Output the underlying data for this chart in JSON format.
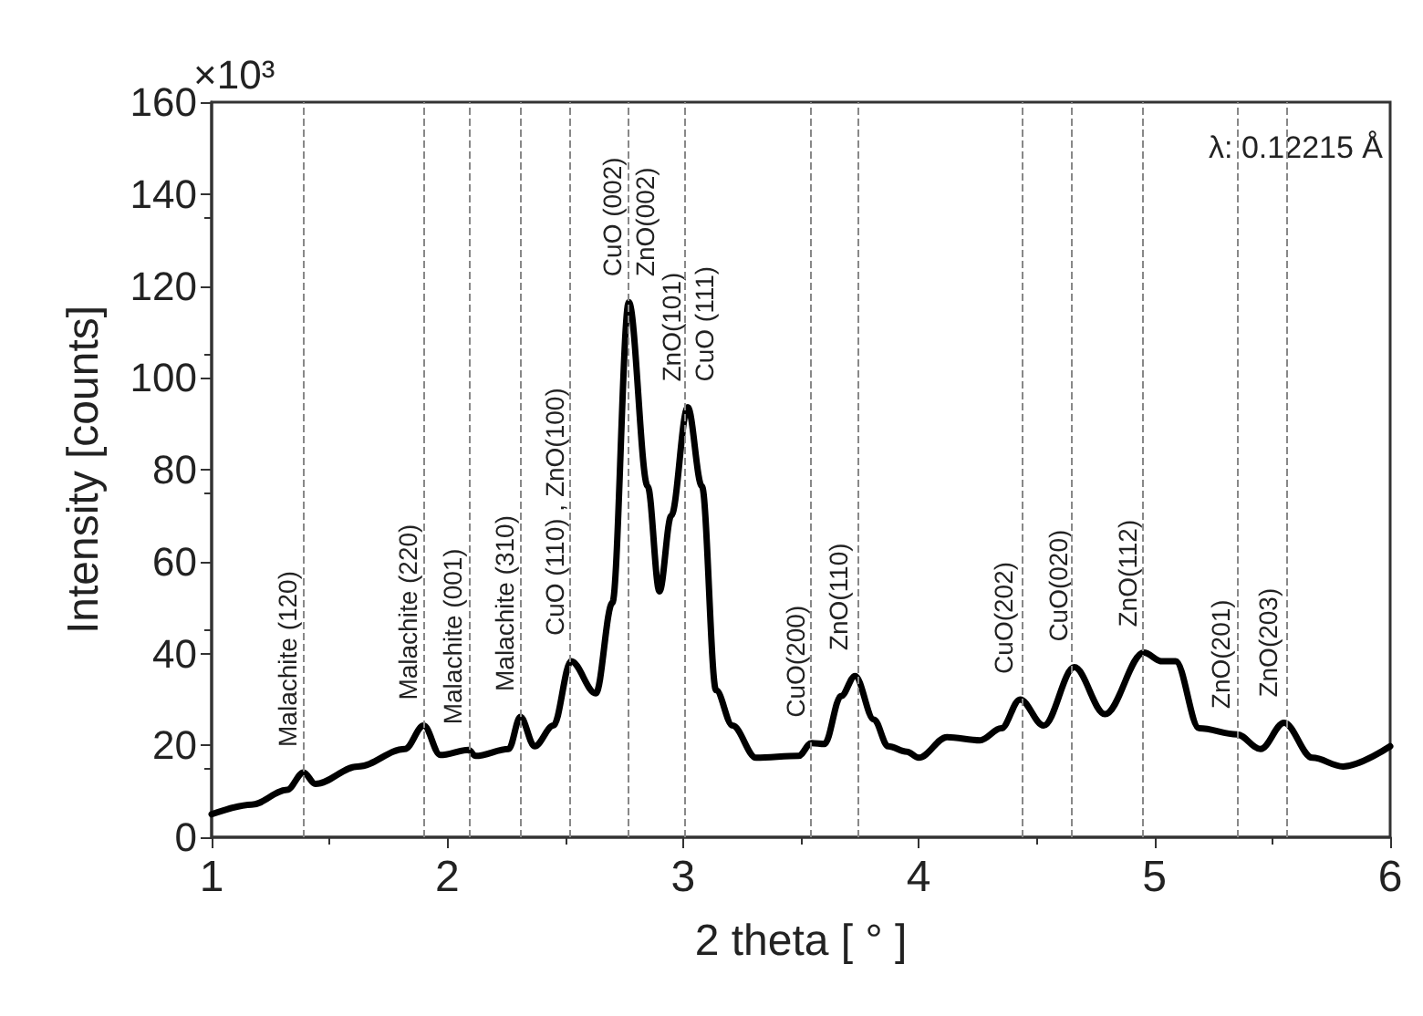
{
  "chart_data": {
    "type": "line",
    "xlabel": "2 theta [ ° ]",
    "ylabel": "Intensity [counts]",
    "xlim": [
      1,
      6
    ],
    "xticks": [
      1,
      2,
      3,
      4,
      5,
      6
    ],
    "ylim": [
      0,
      160
    ],
    "yticks": [
      0,
      20,
      40,
      60,
      80,
      100,
      120,
      140,
      160
    ],
    "grid": false,
    "marker": "none",
    "line_style": "solid",
    "series": [
      {
        "color": "#000000",
        "x": [
          1.0,
          1.17,
          1.32,
          1.39,
          1.44,
          1.62,
          1.82,
          1.9,
          1.97,
          2.09,
          2.12,
          2.26,
          2.31,
          2.37,
          2.45,
          2.525,
          2.63,
          2.7,
          2.77,
          2.85,
          2.9,
          2.95,
          3.02,
          3.08,
          3.14,
          3.21,
          3.31,
          3.49,
          3.545,
          3.6,
          3.67,
          3.73,
          3.81,
          3.87,
          3.95,
          4.0,
          4.12,
          4.26,
          4.35,
          4.43,
          4.53,
          4.66,
          4.79,
          4.955,
          5.03,
          5.09,
          5.19,
          5.35,
          5.45,
          5.55,
          5.67,
          5.8,
          6.0
        ],
        "values": [
          5.0,
          7.1,
          10.3,
          14.1,
          11.6,
          15.4,
          19.2,
          24.3,
          17.9,
          19.0,
          17.7,
          19.2,
          26.2,
          19.8,
          24.3,
          38.3,
          31.3,
          51,
          116.5,
          76.4,
          53.5,
          70,
          93.6,
          76.4,
          32,
          24.3,
          17.3,
          17.7,
          20.5,
          20.3,
          30.7,
          35.1,
          25.6,
          19.8,
          18.6,
          17.3,
          21.8,
          21.1,
          23.7,
          30,
          24.3,
          37,
          26.8,
          40.2,
          38.3,
          38.3,
          23.7,
          22.4,
          19.2,
          24.9,
          17.3,
          15.4,
          19.8
        ]
      }
    ],
    "ref_lines": [
      {
        "axis": "x",
        "value": 1.39,
        "color": "#888888",
        "line_style": "dashed"
      },
      {
        "axis": "x",
        "value": 1.9,
        "color": "#888888",
        "line_style": "dashed"
      },
      {
        "axis": "x",
        "value": 2.09,
        "color": "#888888",
        "line_style": "dashed"
      },
      {
        "axis": "x",
        "value": 2.31,
        "color": "#888888",
        "line_style": "dashed"
      },
      {
        "axis": "x",
        "value": 2.525,
        "color": "#888888",
        "line_style": "dashed"
      },
      {
        "axis": "x",
        "value": 2.77,
        "color": "#888888",
        "line_style": "dashed"
      },
      {
        "axis": "x",
        "value": 3.01,
        "color": "#888888",
        "line_style": "dashed"
      },
      {
        "axis": "x",
        "value": 3.545,
        "color": "#888888",
        "line_style": "dashed"
      },
      {
        "axis": "x",
        "value": 3.737,
        "color": "#888888",
        "line_style": "dashed"
      },
      {
        "axis": "x",
        "value": 4.44,
        "color": "#888888",
        "line_style": "dashed"
      },
      {
        "axis": "x",
        "value": 4.653,
        "color": "#888888",
        "line_style": "dashed"
      },
      {
        "axis": "x",
        "value": 4.948,
        "color": "#888888",
        "line_style": "dashed"
      },
      {
        "axis": "x",
        "value": 5.35,
        "color": "#888888",
        "line_style": "dashed"
      },
      {
        "axis": "x",
        "value": 5.557,
        "color": "#888888",
        "line_style": "dashed"
      }
    ],
    "annotations": [
      "×10³",
      "λ: 0.12215 Å",
      {
        "text": "Malachite (120)",
        "x": 1.39,
        "y": 14.1
      },
      {
        "text": "Malachite (220)",
        "x": 1.9,
        "y": 24.3
      },
      {
        "text": "Malachite (001)",
        "x": 2.09,
        "y": 19.0
      },
      {
        "text": "Malachite (310)",
        "x": 2.31,
        "y": 26.2
      },
      {
        "text": "CuO (110) , ZnO(100)",
        "x": 2.525,
        "y": 38.3
      },
      {
        "text": "CuO (002)",
        "x": 2.77,
        "y": 116.5
      },
      {
        "text": "ZnO(002)",
        "x": 2.77,
        "y": 116.5
      },
      {
        "text": "ZnO(101)",
        "x": 3.02,
        "y": 93.6
      },
      {
        "text": "CuO (111)",
        "x": 3.02,
        "y": 93.6
      },
      {
        "text": "CuO(200)",
        "x": 3.545,
        "y": 20.5
      },
      {
        "text": "ZnO(110)",
        "x": 3.73,
        "y": 35.1
      },
      {
        "text": "CuO(202)",
        "x": 4.43,
        "y": 30
      },
      {
        "text": "CuO(020)",
        "x": 4.66,
        "y": 37
      },
      {
        "text": "ZnO(112)",
        "x": 4.955,
        "y": 40.2
      },
      {
        "text": "ZnO(201)",
        "x": 5.35,
        "y": 22.4
      },
      {
        "text": "ZnO(203)",
        "x": 5.55,
        "y": 24.9
      }
    ]
  }
}
